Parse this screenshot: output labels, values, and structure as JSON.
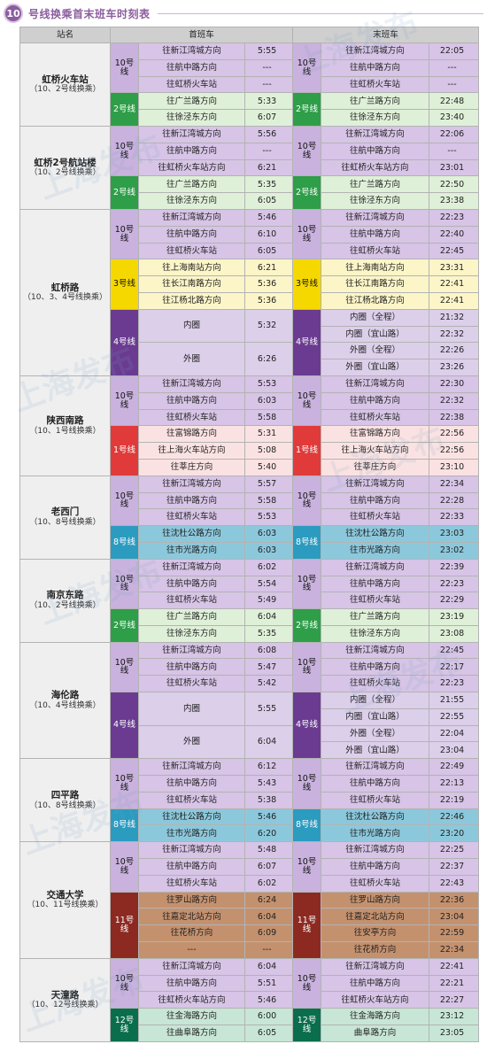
{
  "title": {
    "number": "10",
    "text": "号线换乘首末班车时刻表"
  },
  "header": {
    "station": "站名",
    "first": "首班车",
    "last": "末班车"
  },
  "colors": {
    "10号线": "#d7c4e6",
    "2号线": "#dff0d8",
    "3号线": "#fcf5c8",
    "4号线": "#dccfea",
    "1号线": "#fbe2e2",
    "8号线": "#8cc8dc",
    "11号线": "#c4916e",
    "12号线": "#c8e6d6"
  },
  "lineColors": {
    "10号线": "#c9b2dd",
    "2号线": "#2e9e48",
    "3号线": "#f5d800",
    "4号线": "#6a3b91",
    "1号线": "#e03a3a",
    "8号线": "#2b9bc0",
    "11号线": "#8c2a22",
    "12号线": "#0a6e4c"
  },
  "watermark": "上海发布",
  "stations": [
    {
      "name": "虹桥火车站",
      "sub": "（10、2号线换乘）",
      "groups": [
        {
          "line": "10号线",
          "firstRows": [
            [
              "往新江湾城方向",
              "5:55"
            ],
            [
              "往航中路方向",
              "---"
            ],
            [
              "往虹桥火车站",
              "---"
            ]
          ],
          "lastRows": [
            [
              "往新江湾城方向",
              "22:05"
            ],
            [
              "往航中路方向",
              "---"
            ],
            [
              "往虹桥火车站",
              "---"
            ]
          ]
        },
        {
          "line": "2号线",
          "firstRows": [
            [
              "往广兰路方向",
              "5:33"
            ],
            [
              "往徐泾东方向",
              "6:07"
            ]
          ],
          "lastRows": [
            [
              "往广兰路方向",
              "22:48"
            ],
            [
              "往徐泾东方向",
              "23:40"
            ]
          ]
        }
      ]
    },
    {
      "name": "虹桥2号航站楼",
      "sub": "（10、2号线换乘）",
      "groups": [
        {
          "line": "10号线",
          "firstRows": [
            [
              "往新江湾城方向",
              "5:56"
            ],
            [
              "往航中路方向",
              "---"
            ],
            [
              "往虹桥火车站方向",
              "6:21"
            ]
          ],
          "lastRows": [
            [
              "往新江湾城方向",
              "22:06"
            ],
            [
              "往航中路方向",
              "---"
            ],
            [
              "往虹桥火车站方向",
              "23:01"
            ]
          ]
        },
        {
          "line": "2号线",
          "firstRows": [
            [
              "往广兰路方向",
              "5:35"
            ],
            [
              "往徐泾东方向",
              "6:05"
            ]
          ],
          "lastRows": [
            [
              "往广兰路方向",
              "22:50"
            ],
            [
              "往徐泾东方向",
              "23:38"
            ]
          ]
        }
      ]
    },
    {
      "name": "虹桥路",
      "sub": "（10、3、4号线换乘）",
      "groups": [
        {
          "line": "10号线",
          "firstRows": [
            [
              "往新江湾城方向",
              "5:46"
            ],
            [
              "往航中路方向",
              "6:10"
            ],
            [
              "往虹桥火车站",
              "6:05"
            ]
          ],
          "lastRows": [
            [
              "往新江湾城方向",
              "22:23"
            ],
            [
              "往航中路方向",
              "22:40"
            ],
            [
              "往虹桥火车站",
              "22:45"
            ]
          ]
        },
        {
          "line": "3号线",
          "firstRows": [
            [
              "往上海南站方向",
              "6:21"
            ],
            [
              "往长江南路方向",
              "5:36"
            ],
            [
              "往江杨北路方向",
              "5:36"
            ]
          ],
          "lastRows": [
            [
              "往上海南站方向",
              "23:31"
            ],
            [
              "往长江南路方向",
              "22:41"
            ],
            [
              "往江杨北路方向",
              "22:41"
            ]
          ]
        },
        {
          "line": "4号线",
          "firstRows": [
            [
              "内圈",
              "5:32",
              2
            ],
            [
              "外圈",
              "6:26",
              2
            ]
          ],
          "lastRows": [
            [
              "内圈（全程）",
              "21:32"
            ],
            [
              "内圈（宜山路）",
              "22:32"
            ],
            [
              "外圈（全程）",
              "22:26"
            ],
            [
              "外圈（宜山路）",
              "23:26"
            ]
          ]
        }
      ]
    },
    {
      "name": "陕西南路",
      "sub": "（10、1号线换乘）",
      "groups": [
        {
          "line": "10号线",
          "firstRows": [
            [
              "往新江湾城方向",
              "5:53"
            ],
            [
              "往航中路方向",
              "6:03"
            ],
            [
              "往虹桥火车站",
              "5:58"
            ]
          ],
          "lastRows": [
            [
              "往新江湾城方向",
              "22:30"
            ],
            [
              "往航中路方向",
              "22:32"
            ],
            [
              "往虹桥火车站",
              "22:38"
            ]
          ]
        },
        {
          "line": "1号线",
          "firstRows": [
            [
              "往富锦路方向",
              "5:31"
            ],
            [
              "往上海火车站方向",
              "5:08"
            ],
            [
              "往莘庄方向",
              "5:40"
            ]
          ],
          "lastRows": [
            [
              "往富锦路方向",
              "22:56"
            ],
            [
              "往上海火车站方向",
              "22:56"
            ],
            [
              "往莘庄方向",
              "23:10"
            ]
          ]
        }
      ]
    },
    {
      "name": "老西门",
      "sub": "（10、8号线换乘）",
      "groups": [
        {
          "line": "10号线",
          "firstRows": [
            [
              "往新江湾城方向",
              "5:57"
            ],
            [
              "往航中路方向",
              "5:58"
            ],
            [
              "往虹桥火车站",
              "5:53"
            ]
          ],
          "lastRows": [
            [
              "往新江湾城方向",
              "22:34"
            ],
            [
              "往航中路方向",
              "22:28"
            ],
            [
              "往虹桥火车站",
              "22:33"
            ]
          ]
        },
        {
          "line": "8号线",
          "firstRows": [
            [
              "往沈杜公路方向",
              "6:03"
            ],
            [
              "往市光路方向",
              "6:03"
            ]
          ],
          "lastRows": [
            [
              "往沈杜公路方向",
              "23:03"
            ],
            [
              "往市光路方向",
              "23:02"
            ]
          ]
        }
      ]
    },
    {
      "name": "南京东路",
      "sub": "（10、2号线换乘）",
      "groups": [
        {
          "line": "10号线",
          "firstRows": [
            [
              "往新江湾城方向",
              "6:02"
            ],
            [
              "往航中路方向",
              "5:54"
            ],
            [
              "往虹桥火车站",
              "5:49"
            ]
          ],
          "lastRows": [
            [
              "往新江湾城方向",
              "22:39"
            ],
            [
              "往航中路方向",
              "22:23"
            ],
            [
              "往虹桥火车站",
              "22:29"
            ]
          ]
        },
        {
          "line": "2号线",
          "firstRows": [
            [
              "往广兰路方向",
              "6:04"
            ],
            [
              "往徐泾东方向",
              "5:35"
            ]
          ],
          "lastRows": [
            [
              "往广兰路方向",
              "23:19"
            ],
            [
              "往徐泾东方向",
              "23:08"
            ]
          ]
        }
      ]
    },
    {
      "name": "海伦路",
      "sub": "（10、4号线换乘）",
      "groups": [
        {
          "line": "10号线",
          "firstRows": [
            [
              "往新江湾城方向",
              "6:08"
            ],
            [
              "往航中路方向",
              "5:47"
            ],
            [
              "往虹桥火车站",
              "5:42"
            ]
          ],
          "lastRows": [
            [
              "往新江湾城方向",
              "22:45"
            ],
            [
              "往航中路方向",
              "22:17"
            ],
            [
              "往虹桥火车站",
              "22:23"
            ]
          ]
        },
        {
          "line": "4号线",
          "firstRows": [
            [
              "内圈",
              "5:55",
              2
            ],
            [
              "外圈",
              "6:04",
              2
            ]
          ],
          "lastRows": [
            [
              "内圈（全程）",
              "21:55"
            ],
            [
              "内圈（宜山路）",
              "22:55"
            ],
            [
              "外圈（全程）",
              "22:04"
            ],
            [
              "外圈（宜山路）",
              "23:04"
            ]
          ]
        }
      ]
    },
    {
      "name": "四平路",
      "sub": "（10、8号线换乘）",
      "groups": [
        {
          "line": "10号线",
          "firstRows": [
            [
              "往新江湾城方向",
              "6:12"
            ],
            [
              "往航中路方向",
              "5:43"
            ],
            [
              "往虹桥火车站",
              "5:38"
            ]
          ],
          "lastRows": [
            [
              "往新江湾城方向",
              "22:49"
            ],
            [
              "往航中路方向",
              "22:13"
            ],
            [
              "往虹桥火车站",
              "22:19"
            ]
          ]
        },
        {
          "line": "8号线",
          "firstRows": [
            [
              "往沈杜公路方向",
              "5:46"
            ],
            [
              "往市光路方向",
              "6:20"
            ]
          ],
          "lastRows": [
            [
              "往沈杜公路方向",
              "22:46"
            ],
            [
              "往市光路方向",
              "23:20"
            ]
          ]
        }
      ]
    },
    {
      "name": "交通大学",
      "sub": "（10、11号线换乘）",
      "groups": [
        {
          "line": "10号线",
          "firstRows": [
            [
              "往新江湾城方向",
              "5:48"
            ],
            [
              "往航中路方向",
              "6:07"
            ],
            [
              "往虹桥火车站",
              "6:02"
            ]
          ],
          "lastRows": [
            [
              "往新江湾城方向",
              "22:25"
            ],
            [
              "往航中路方向",
              "22:37"
            ],
            [
              "往虹桥火车站",
              "22:43"
            ]
          ]
        },
        {
          "line": "11号线",
          "firstRows": [
            [
              "往罗山路方向",
              "6:24"
            ],
            [
              "往嘉定北站方向",
              "6:04"
            ],
            [
              "往花桥方向",
              "6:09"
            ],
            [
              "---",
              "---"
            ]
          ],
          "lastRows": [
            [
              "往罗山路方向",
              "22:36"
            ],
            [
              "往嘉定北站方向",
              "23:04"
            ],
            [
              "往安亭方向",
              "22:59"
            ],
            [
              "往花桥方向",
              "22:34"
            ]
          ]
        }
      ]
    },
    {
      "name": "天潼路",
      "sub": "（10、12号线换乘）",
      "groups": [
        {
          "line": "10号线",
          "firstRows": [
            [
              "往新江湾城方向",
              "6:04"
            ],
            [
              "往航中路方向",
              "5:51"
            ],
            [
              "往虹桥火车站方向",
              "5:46"
            ]
          ],
          "lastRows": [
            [
              "往新江湾城方向",
              "22:41"
            ],
            [
              "往航中路方向",
              "22:21"
            ],
            [
              "往虹桥火车站方向",
              "22:27"
            ]
          ]
        },
        {
          "line": "12号线",
          "firstRows": [
            [
              "往金海路方向",
              "6:00"
            ],
            [
              "往曲阜路方向",
              "6:05"
            ]
          ],
          "lastRows": [
            [
              "往金海路方向",
              "23:12"
            ],
            [
              "曲阜路方向",
              "23:05"
            ]
          ]
        }
      ]
    }
  ]
}
